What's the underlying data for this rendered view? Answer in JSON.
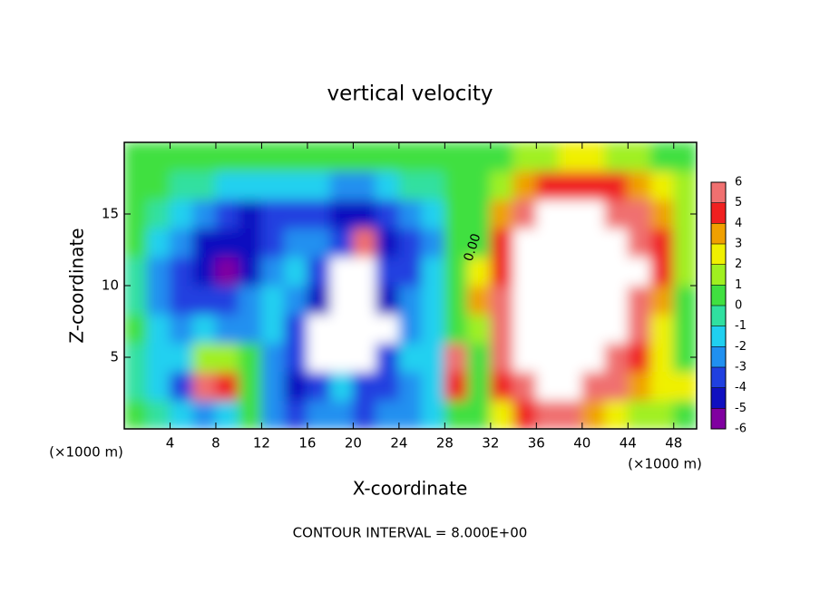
{
  "chart_data": {
    "type": "heatmap",
    "title": "vertical velocity",
    "x_label": "X-coordinate",
    "y_label": "Z-coordinate",
    "x_unit_label": "(×1000 m)",
    "y_unit_label": "(×1000 m)",
    "footer": "CONTOUR INTERVAL = 8.000E+00",
    "contour_label": "0.00",
    "xlim": [
      0,
      50
    ],
    "ylim": [
      0,
      20
    ],
    "xticks": [
      4,
      8,
      12,
      16,
      20,
      24,
      28,
      32,
      36,
      40,
      44,
      48
    ],
    "yticks": [
      5,
      10,
      15
    ],
    "x": [
      1,
      3,
      5,
      7,
      9,
      11,
      13,
      15,
      17,
      19,
      21,
      23,
      25,
      27,
      29,
      31,
      33,
      35,
      37,
      39,
      41,
      43,
      45,
      47,
      49
    ],
    "y": [
      1,
      3,
      5,
      7,
      9,
      11,
      13,
      15,
      17,
      19
    ],
    "z": [
      [
        0,
        -1,
        -2,
        -3,
        -2,
        0,
        -3,
        -4,
        -3,
        -3,
        -4,
        -3,
        -3,
        -2,
        0,
        0,
        2,
        4,
        5,
        5,
        3,
        2,
        1,
        1,
        0.5
      ],
      [
        -1,
        -2,
        -4,
        5,
        4,
        0,
        -3,
        -5,
        -4,
        -2,
        -4,
        -4,
        -3,
        -2,
        4,
        0,
        4,
        6,
        8,
        8,
        6,
        5,
        3,
        2,
        2
      ],
      [
        -1,
        -2,
        -2,
        1,
        1,
        0,
        -3,
        -4,
        8,
        8,
        8,
        -4,
        -2,
        -2,
        6,
        0.5,
        5,
        7,
        8,
        8,
        8,
        6,
        4,
        2,
        0.5
      ],
      [
        0,
        -2,
        -3,
        -2,
        -3,
        -3,
        -2,
        -4,
        7,
        8,
        8,
        7,
        -3,
        -2,
        0,
        1,
        5,
        8,
        8,
        8,
        8,
        7,
        5,
        2,
        0
      ],
      [
        -1,
        -3,
        -3.5,
        -4,
        -3.5,
        -3,
        -2,
        -3,
        -5,
        8,
        8,
        -5,
        -3,
        -2,
        0,
        3,
        5,
        8,
        8,
        8,
        8,
        8,
        6,
        3,
        0.5
      ],
      [
        -1,
        -3,
        -4,
        -5,
        -5.5,
        -4.5,
        -3,
        -2,
        -4,
        7,
        7,
        -4,
        -3.5,
        -2,
        0,
        2,
        4.5,
        8,
        8,
        8,
        8,
        8,
        7,
        4,
        1
      ],
      [
        0,
        -2,
        -3,
        -4.5,
        -5,
        -5,
        -4,
        -3,
        -3,
        -4,
        6,
        -4.5,
        -4,
        -3,
        0,
        0.5,
        4,
        7,
        8,
        8,
        8,
        8,
        6,
        4,
        1
      ],
      [
        0,
        -1,
        -2,
        -3,
        -4,
        -4.5,
        -4,
        -3.5,
        -4,
        -4.5,
        -4.5,
        -4,
        -3,
        -2,
        0,
        0.5,
        3,
        5,
        7,
        7,
        7,
        6,
        5,
        3,
        1
      ],
      [
        0.3,
        0,
        -0.5,
        -1,
        -1.5,
        -2,
        -1.5,
        -1.5,
        -2,
        -2.5,
        -2.5,
        -2,
        -1,
        -0.5,
        0,
        0.5,
        1.5,
        3,
        4,
        4.5,
        4.5,
        4,
        3,
        2,
        1
      ],
      [
        0.5,
        0.5,
        0.5,
        0.3,
        0.3,
        0,
        0,
        0,
        0,
        0,
        0,
        0,
        0,
        0,
        0,
        0.3,
        0.5,
        1,
        1.5,
        2,
        2,
        1.5,
        1,
        0.8,
        0.5
      ]
    ],
    "colorbar": {
      "ticks": [
        -6,
        -5,
        -4,
        -3,
        -2,
        -1,
        0,
        1,
        2,
        3,
        4,
        5,
        6
      ],
      "colors": [
        "#8000a0",
        "#1010c0",
        "#2040e0",
        "#2090f0",
        "#20d0f0",
        "#30e0a0",
        "#40e040",
        "#a0f020",
        "#f0f000",
        "#f0a000",
        "#f02020",
        "#f07070"
      ]
    }
  }
}
